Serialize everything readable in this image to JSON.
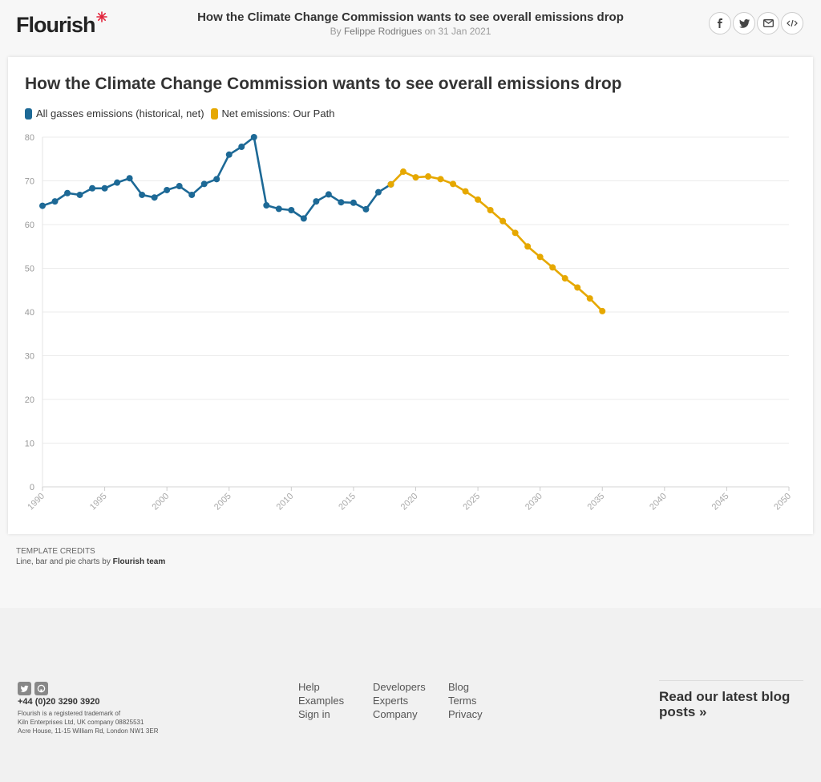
{
  "header": {
    "logo_text": "Flourish",
    "title": "How the Climate Change Commission wants to see overall emissions drop",
    "by": "By",
    "author": "Felippe Rodrigues",
    "on_date": "on 31 Jan 2021",
    "share_icons": [
      "facebook-icon",
      "twitter-icon",
      "email-icon",
      "embed-icon"
    ],
    "accent": "#e2253c"
  },
  "chart_data": {
    "type": "line",
    "title": "How the Climate Change Commission wants to see overall emissions drop",
    "xlim": [
      1990,
      2050
    ],
    "ylim": [
      0,
      80
    ],
    "x_ticks": [
      1990,
      1995,
      2000,
      2005,
      2010,
      2015,
      2020,
      2025,
      2030,
      2035,
      2040,
      2045,
      2050
    ],
    "y_ticks": [
      0,
      10,
      20,
      30,
      40,
      50,
      60,
      70,
      80
    ],
    "grid": true,
    "legend_position": "top-left",
    "series": [
      {
        "name": "All gasses emissions (historical, net)",
        "color": "#1d6996",
        "x": [
          1990,
          1991,
          1992,
          1993,
          1994,
          1995,
          1996,
          1997,
          1998,
          1999,
          2000,
          2001,
          2002,
          2003,
          2004,
          2005,
          2006,
          2007,
          2008,
          2009,
          2010,
          2011,
          2012,
          2013,
          2014,
          2015,
          2016,
          2017,
          2018
        ],
        "y": [
          64.3,
          65.3,
          67.2,
          66.8,
          68.3,
          68.3,
          69.6,
          70.6,
          66.8,
          66.2,
          67.9,
          68.8,
          66.8,
          69.3,
          70.4,
          76.0,
          77.8,
          80.0,
          64.4,
          63.6,
          63.3,
          61.4,
          65.3,
          66.9,
          65.1,
          65.0,
          63.5,
          67.4,
          69.2
        ]
      },
      {
        "name": "Net emissions: Our Path",
        "color": "#e6a800",
        "x": [
          2018,
          2019,
          2020,
          2021,
          2022,
          2023,
          2024,
          2025,
          2026,
          2027,
          2028,
          2029,
          2030,
          2031,
          2032,
          2033,
          2034,
          2035
        ],
        "y": [
          69.2,
          72.1,
          70.8,
          71.0,
          70.4,
          69.3,
          67.6,
          65.7,
          63.3,
          60.8,
          58.1,
          55.0,
          52.6,
          50.2,
          47.7,
          45.6,
          43.1,
          40.2
        ]
      }
    ]
  },
  "credits": {
    "heading": "Template credits",
    "text": "Line, bar and pie charts by",
    "team": "Flourish team"
  },
  "footer": {
    "social_icons": [
      "twitter-icon",
      "github-icon"
    ],
    "phone": "+44 (0)20 3290 3920",
    "legal_1": "Flourish is a registered trademark of",
    "legal_2": "Kiln Enterprises Ltd, UK company 08825531",
    "legal_3": "Acre House, 11-15 William Rd, London NW1 3ER",
    "col1": [
      "Help",
      "Examples",
      "Sign in"
    ],
    "col2": [
      "Developers",
      "Experts",
      "Company"
    ],
    "col3": [
      "Blog",
      "Terms",
      "Privacy"
    ],
    "blog_link": "Read our latest blog posts »"
  }
}
